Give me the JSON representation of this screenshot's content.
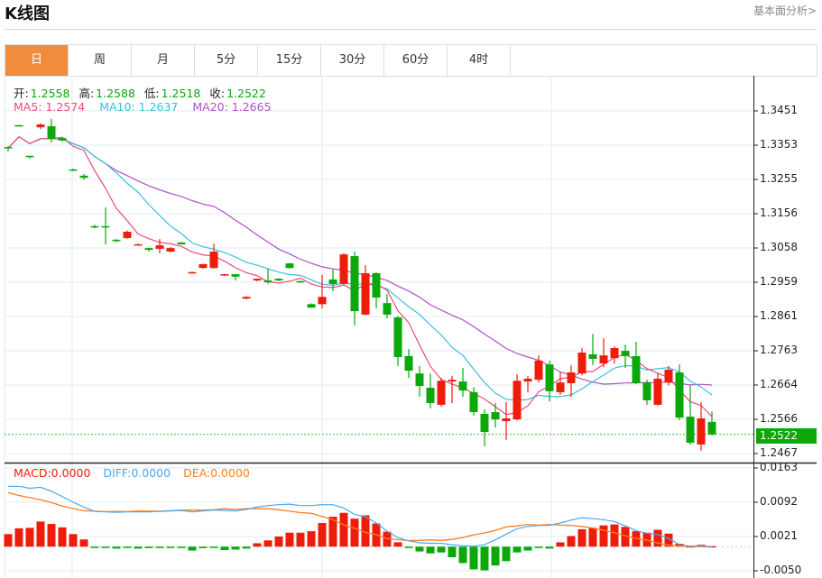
{
  "header": {
    "title": "K线图",
    "link": "基本面分析>"
  },
  "tabs": [
    {
      "label": "日",
      "active": true
    },
    {
      "label": "周"
    },
    {
      "label": "月"
    },
    {
      "label": "5分"
    },
    {
      "label": "15分"
    },
    {
      "label": "30分"
    },
    {
      "label": "60分"
    },
    {
      "label": "4时"
    }
  ],
  "ohlc_info": {
    "open_label": "开:",
    "open": "1.2558",
    "high_label": "高:",
    "high": "1.2588",
    "low_label": "低:",
    "low": "1.2518",
    "close_label": "收:",
    "close": "1.2522"
  },
  "ma_info": {
    "ma5": "MA5: 1.2574",
    "ma10": "MA10: 1.2637",
    "ma20": "MA20: 1.2665"
  },
  "macd_info": {
    "macd": "MACD:0.0000",
    "diff": "DIFF:0.0000",
    "dea": "DEA:0.0000"
  },
  "colors": {
    "up": "#ee1c0a",
    "down": "#0aa80a",
    "ma5": "#ec4a7c",
    "ma10": "#35c2dc",
    "ma20": "#b050c8",
    "diff": "#4aa8f0",
    "dea": "#ff7d1e",
    "accent": "#f08c3c"
  },
  "chart_data": {
    "type": "candlestick",
    "price_ticks": [
      "1.3451",
      "1.3353",
      "1.3255",
      "1.3156",
      "1.3058",
      "1.2959",
      "1.2861",
      "1.2763",
      "1.2664",
      "1.2566",
      "1.2467"
    ],
    "current_price": "1.2522",
    "macd_ticks": [
      "0.0163",
      "0.0092",
      "0.0021",
      "-0.0050"
    ],
    "candles_ohlc": [
      [
        1.3347,
        1.3349,
        1.3334,
        1.3344
      ],
      [
        1.341,
        1.3411,
        1.3408,
        1.3409
      ],
      [
        1.3322,
        1.3323,
        1.3314,
        1.3319
      ],
      [
        1.3404,
        1.3415,
        1.3399,
        1.3412
      ],
      [
        1.3407,
        1.3428,
        1.336,
        1.3371
      ],
      [
        1.3373,
        1.3374,
        1.3363,
        1.3366
      ],
      [
        1.3283,
        1.3285,
        1.3278,
        1.328
      ],
      [
        1.3265,
        1.327,
        1.3254,
        1.3259
      ],
      [
        1.312,
        1.3124,
        1.3114,
        1.3119
      ],
      [
        1.312,
        1.3174,
        1.3068,
        1.3119
      ],
      [
        1.3081,
        1.3083,
        1.3073,
        1.3078
      ],
      [
        1.3086,
        1.3107,
        1.3084,
        1.3104
      ],
      [
        1.3067,
        1.307,
        1.3065,
        1.3068
      ],
      [
        1.3057,
        1.3058,
        1.3047,
        1.3052
      ],
      [
        1.3055,
        1.3083,
        1.3042,
        1.3065
      ],
      [
        1.3047,
        1.306,
        1.3045,
        1.3057
      ],
      [
        1.3073,
        1.3075,
        1.3067,
        1.3068
      ],
      [
        1.2987,
        1.299,
        1.2985,
        1.2988
      ],
      [
        1.3,
        1.3012,
        1.2998,
        1.3011
      ],
      [
        1.3,
        1.307,
        1.2998,
        1.3047
      ],
      [
        1.2981,
        1.2983,
        1.2977,
        1.2982
      ],
      [
        1.2982,
        1.2983,
        1.2964,
        1.2975
      ],
      [
        1.2912,
        1.2919,
        1.291,
        1.2917
      ],
      [
        1.2964,
        1.297,
        1.2962,
        1.2969
      ],
      [
        1.2964,
        1.2998,
        1.2954,
        1.2959
      ],
      [
        1.2969,
        1.2971,
        1.2962,
        1.2964
      ],
      [
        1.3013,
        1.3015,
        1.2998,
        1.3
      ],
      [
        1.2962,
        1.2964,
        1.2959,
        1.2961
      ],
      [
        1.2896,
        1.2898,
        1.2886,
        1.2886
      ],
      [
        1.2896,
        1.298,
        1.2884,
        1.2917
      ],
      [
        1.2967,
        1.2998,
        1.2933,
        1.2954
      ],
      [
        1.2954,
        1.3042,
        1.2952,
        1.3039
      ],
      [
        1.3034,
        1.3047,
        1.2835,
        1.2876
      ],
      [
        1.2866,
        1.3008,
        1.2864,
        1.2985
      ],
      [
        1.2985,
        1.2988,
        1.2884,
        1.2915
      ],
      [
        1.2899,
        1.2925,
        1.2855,
        1.2866
      ],
      [
        1.2858,
        1.2862,
        1.2718,
        1.2744
      ],
      [
        1.2747,
        1.2767,
        1.2684,
        1.2705
      ],
      [
        1.2697,
        1.2718,
        1.263,
        1.2661
      ],
      [
        1.2656,
        1.2697,
        1.2597,
        1.2612
      ],
      [
        1.2607,
        1.2684,
        1.2602,
        1.2676
      ],
      [
        1.2674,
        1.269,
        1.2612,
        1.2679
      ],
      [
        1.2674,
        1.2713,
        1.263,
        1.2648
      ],
      [
        1.2643,
        1.2658,
        1.2576,
        1.2586
      ],
      [
        1.2581,
        1.2594,
        1.2488,
        1.2529
      ],
      [
        1.2586,
        1.2612,
        1.2542,
        1.2565
      ],
      [
        1.256,
        1.2615,
        1.2506,
        1.2568
      ],
      [
        1.2565,
        1.2695,
        1.2563,
        1.2676
      ],
      [
        1.2674,
        1.269,
        1.2643,
        1.2682
      ],
      [
        1.2679,
        1.2749,
        1.2671,
        1.2734
      ],
      [
        1.2723,
        1.2734,
        1.2617,
        1.2646
      ],
      [
        1.2643,
        1.27,
        1.2636,
        1.2671
      ],
      [
        1.2669,
        1.2721,
        1.263,
        1.27
      ],
      [
        1.2697,
        1.277,
        1.2692,
        1.2757
      ],
      [
        1.2752,
        1.2811,
        1.2721,
        1.2739
      ],
      [
        1.2726,
        1.2798,
        1.2715,
        1.2749
      ],
      [
        1.2741,
        1.2775,
        1.2726,
        1.277
      ],
      [
        1.2762,
        1.278,
        1.2713,
        1.2747
      ],
      [
        1.2747,
        1.2788,
        1.2666,
        1.2669
      ],
      [
        1.2671,
        1.2679,
        1.2607,
        1.262
      ],
      [
        1.2607,
        1.2697,
        1.2605,
        1.2682
      ],
      [
        1.2671,
        1.2718,
        1.2663,
        1.2708
      ],
      [
        1.27,
        1.2723,
        1.2563,
        1.257
      ],
      [
        1.2573,
        1.2664,
        1.2493,
        1.2498
      ],
      [
        1.2493,
        1.2615,
        1.2475,
        1.2568
      ],
      [
        1.2558,
        1.2588,
        1.2518,
        1.2522
      ]
    ],
    "macd_hist": [
      0.0026,
      0.0038,
      0.0039,
      0.0052,
      0.0047,
      0.004,
      0.0026,
      0.0015,
      -0.0001,
      -0.0001,
      -0.0004,
      -0.0001,
      -0.0004,
      -0.0003,
      -0.0001,
      -0.0001,
      -0.0001,
      -0.0008,
      -0.0003,
      -0.0001,
      -0.0007,
      -0.0006,
      -0.0004,
      0.0007,
      0.0013,
      0.0021,
      0.0029,
      0.0029,
      0.0032,
      0.0049,
      0.0062,
      0.007,
      0.0058,
      0.0065,
      0.0048,
      0.0031,
      0.0009,
      -0.0001,
      -0.001,
      -0.0014,
      -0.0012,
      -0.0022,
      -0.0034,
      -0.0047,
      -0.0049,
      -0.0039,
      -0.003,
      -0.0012,
      -0.0008,
      -0.0001,
      -0.0004,
      0.0009,
      0.0022,
      0.0036,
      0.0039,
      0.0044,
      0.0046,
      0.0041,
      0.0032,
      0.0029,
      0.0035,
      0.0027,
      0.0006,
      0.0001,
      0.0004,
      0.0001
    ],
    "diff": [
      0.0125,
      0.0125,
      0.0121,
      0.0123,
      0.0115,
      0.0104,
      0.0092,
      0.0082,
      0.0073,
      0.0072,
      0.0071,
      0.0072,
      0.0072,
      0.0072,
      0.0073,
      0.0074,
      0.0075,
      0.0072,
      0.0074,
      0.0076,
      0.0075,
      0.0074,
      0.0077,
      0.0082,
      0.0085,
      0.0087,
      0.0088,
      0.0085,
      0.0085,
      0.0087,
      0.0087,
      0.008,
      0.0067,
      0.0062,
      0.0049,
      0.0032,
      0.0019,
      0.0012,
      0.0008,
      0.0007,
      0.0007,
      0.0004,
      0.0002,
      0.0001,
      0.0004,
      0.0014,
      0.0026,
      0.0037,
      0.0042,
      0.0044,
      0.0044,
      0.0049,
      0.0055,
      0.006,
      0.0058,
      0.0056,
      0.0052,
      0.0043,
      0.0033,
      0.0028,
      0.0025,
      0.0017,
      0.0004,
      0.0001,
      0.0002,
      0.0
    ]
  }
}
